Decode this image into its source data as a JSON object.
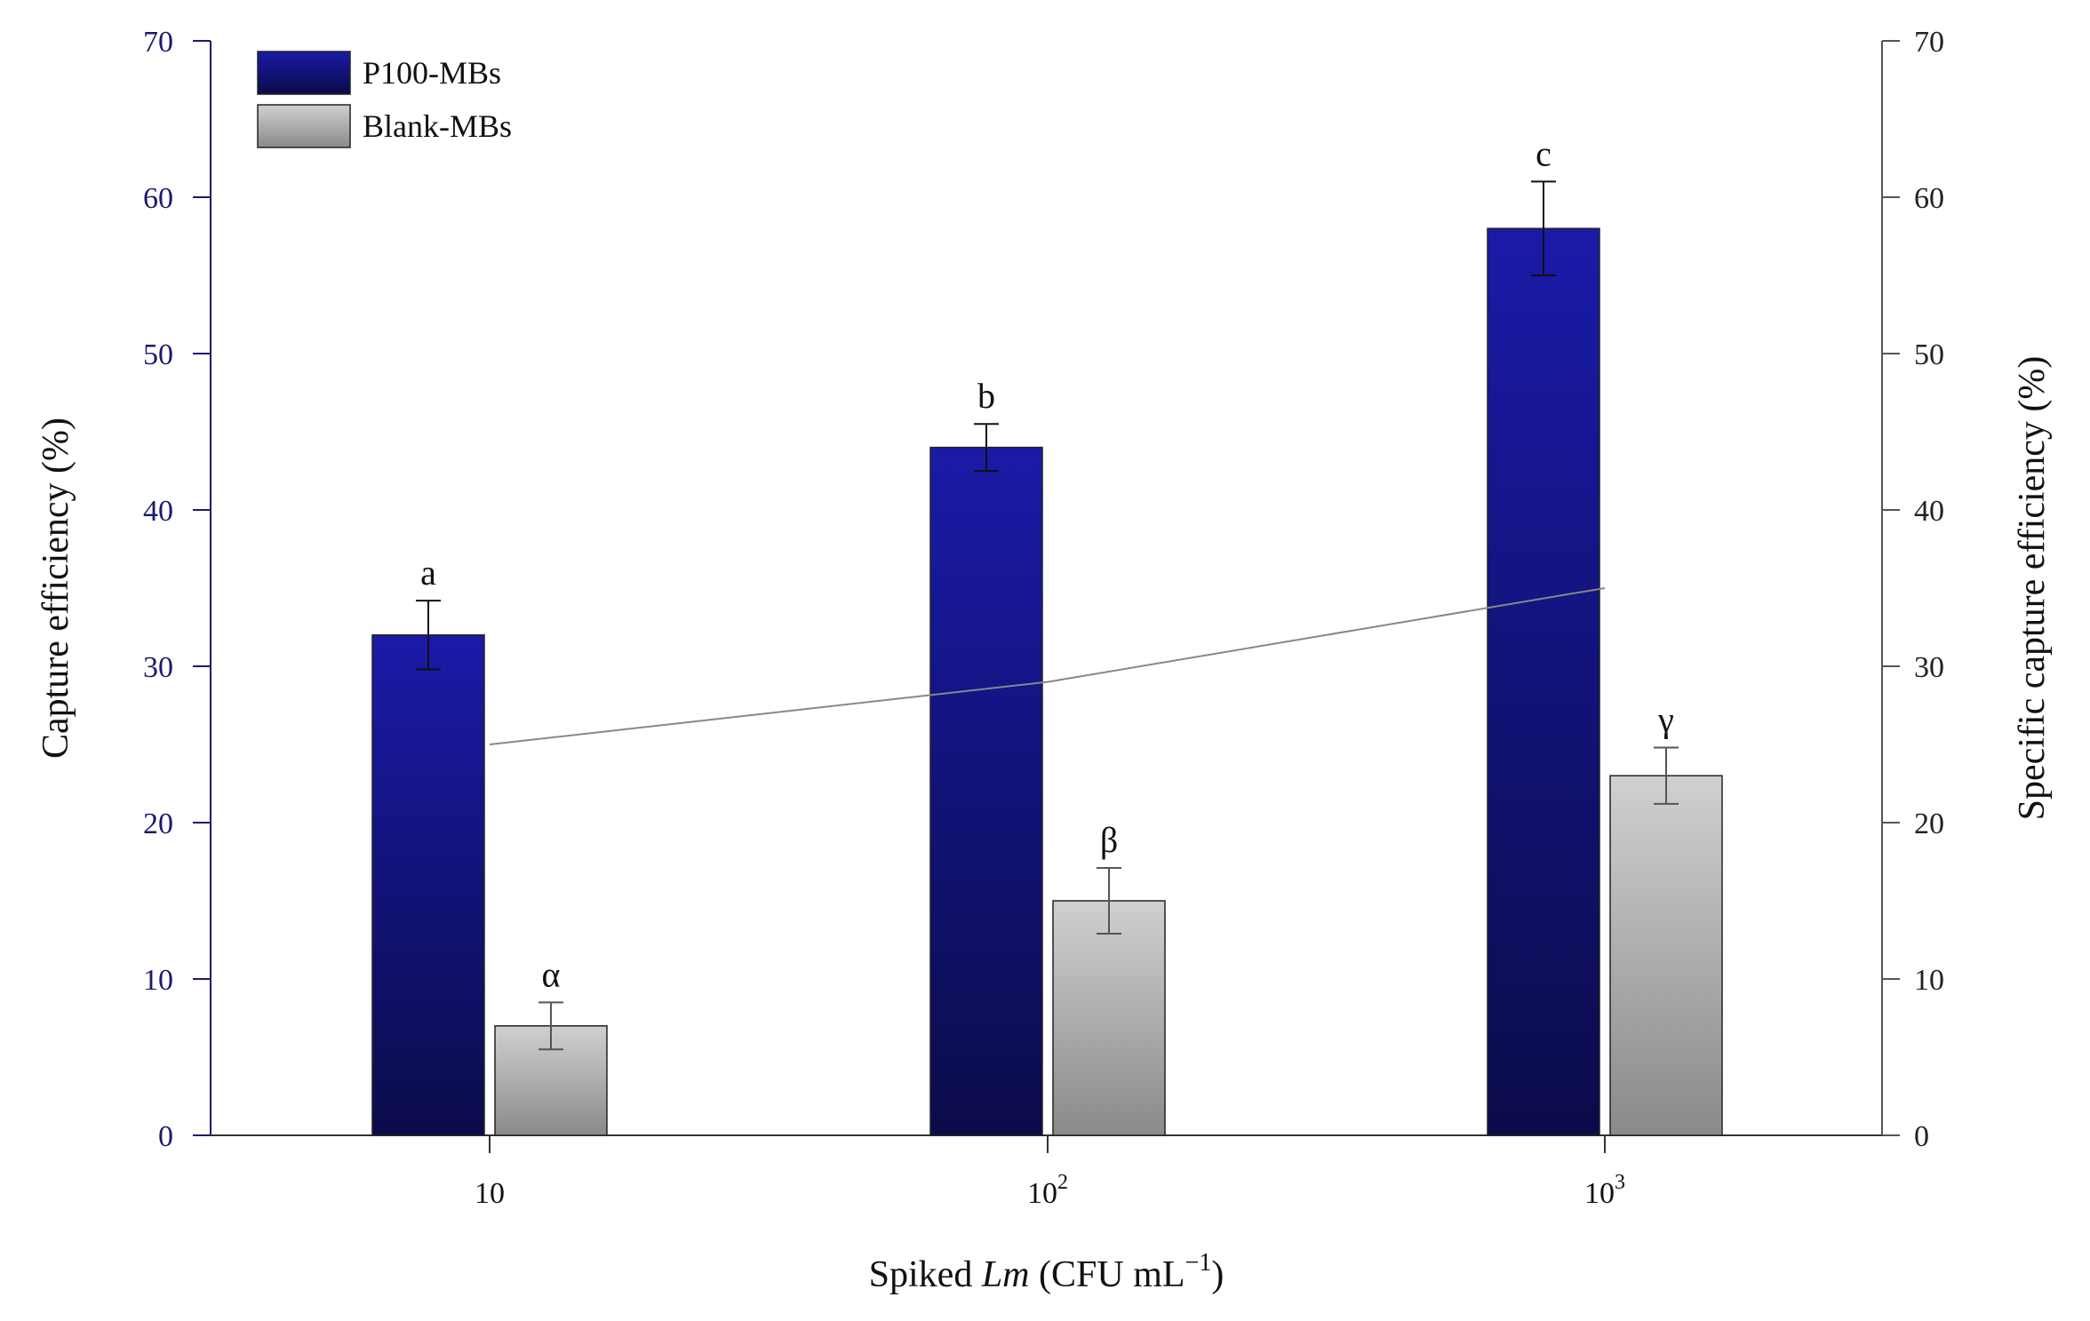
{
  "chart_data": {
    "type": "bar",
    "categories": [
      "10",
      "10",
      "10"
    ],
    "category_superscripts": [
      "",
      "2",
      "3"
    ],
    "series": [
      {
        "name": "P100-MBs",
        "values": [
          32,
          44,
          58
        ],
        "errors": [
          2.2,
          1.5,
          3.0
        ],
        "significance_letters": [
          "a",
          "b",
          "c"
        ],
        "color_top": "#1a1aa8",
        "color_bottom": "#0b0b4a"
      },
      {
        "name": "Blank-MBs",
        "values": [
          7,
          15,
          23
        ],
        "errors": [
          1.5,
          2.1,
          1.8
        ],
        "significance_letters": [
          "α",
          "β",
          "γ"
        ],
        "color_top": "#d0d0d0",
        "color_bottom": "#8a8a8a"
      }
    ],
    "line_series": {
      "name": "Specific capture efficiency",
      "axis": "right",
      "values": [
        25,
        29,
        35
      ],
      "color": "#888888"
    },
    "xlabel": {
      "prefix": "Spiked ",
      "italic": "Lm",
      "suffix": " (CFU mL",
      "superscript": "−1",
      "close": ")"
    },
    "ylabel_left": "Capture efficiency (%)",
    "ylabel_right": "Specific capture efficiency (%)",
    "ylim": [
      0,
      70
    ],
    "yticks": [
      0,
      10,
      20,
      30,
      40,
      50,
      60,
      70
    ],
    "y2lim": [
      0,
      70
    ],
    "y2ticks": [
      0,
      10,
      20,
      30,
      40,
      50,
      60,
      70
    ],
    "legend_position": "top-left",
    "left_axis_color": "#1a1a6e",
    "right_axis_color": "#555555"
  }
}
